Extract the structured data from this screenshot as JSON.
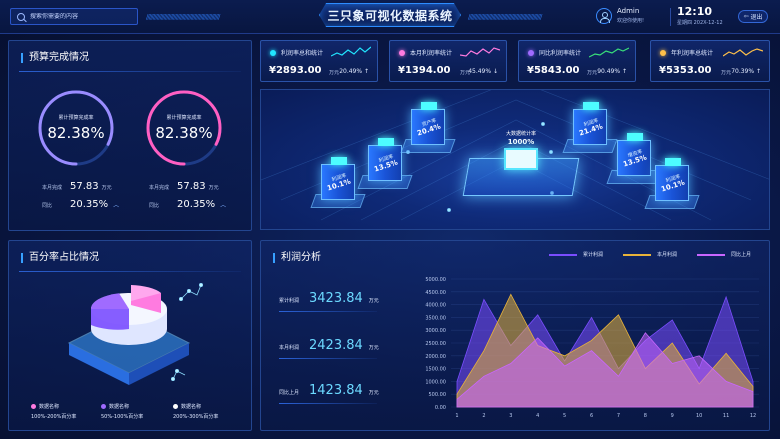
{
  "header": {
    "search_placeholder": "搜索你需要的内容",
    "title": "三只象可视化数据系统",
    "user_name": "Admin",
    "user_greeting": "欢迎你使用!",
    "time": "12:10",
    "date": "星期四 202X-12-12",
    "exit_label": "退出"
  },
  "budget": {
    "title": "预算完成情况",
    "gauges": [
      {
        "label": "累计预算完成率",
        "value": "82.38%",
        "fraction": 0.8238,
        "color": "#9a8cff"
      },
      {
        "label": "累计预算完成率",
        "value": "82.38%",
        "fraction": 0.8238,
        "color": "#ff5fc2"
      }
    ],
    "stats": [
      {
        "month_label": "本月完成",
        "month_value": "57.83",
        "unit": "万元",
        "yoy_label": "同比",
        "yoy_value": "20.35%",
        "yoy_icon": "arrow-up-icon"
      },
      {
        "month_label": "本月完成",
        "month_value": "57.83",
        "unit": "万元",
        "yoy_label": "同比",
        "yoy_value": "20.35%",
        "yoy_icon": "arrow-up-icon"
      }
    ]
  },
  "kpis": [
    {
      "name": "利润率总和统计",
      "value": "¥2893.00",
      "unit": "万元",
      "pct": "20.49% ↑",
      "color": "#21e6ff"
    },
    {
      "name": "本月利润率统计",
      "value": "¥1394.00",
      "unit": "万元",
      "pct": "45.49% ↓",
      "color": "#ff7be0"
    },
    {
      "name": "同比利润率统计",
      "value": "¥5843.00",
      "unit": "万元",
      "pct": "90.49% ↑",
      "color": "#a06bff"
    },
    {
      "name": "年利润率总统计",
      "value": "¥5353.00",
      "unit": "万元",
      "pct": "70.39% ↑",
      "color": "#ffc04a"
    }
  ],
  "center": {
    "hub": {
      "label": "大数据统计率",
      "value": "1000%"
    },
    "towers": [
      {
        "label": "利润率",
        "value": "10.1%"
      },
      {
        "label": "利润率",
        "value": "13.5%"
      },
      {
        "label": "资产率",
        "value": "20.4%"
      },
      {
        "label": "利润率",
        "value": "21.4%"
      },
      {
        "label": "增资率",
        "value": "13.5%"
      },
      {
        "label": "利润率",
        "value": "10.1%"
      }
    ]
  },
  "percent": {
    "title": "百分率占比情况",
    "legend": [
      {
        "name": "数据名称",
        "range": "100%-200%百分率",
        "color": "#ff7be0"
      },
      {
        "name": "数据名称",
        "range": "50%-100%百分率",
        "color": "#a06bff"
      },
      {
        "name": "数据名称",
        "range": "200%-300%百分率",
        "color": "#ffffff"
      }
    ]
  },
  "profit": {
    "title": "利润分析",
    "rows": [
      {
        "label": "累计利润",
        "value": "3423.84",
        "unit": "万元"
      },
      {
        "label": "本月利润",
        "value": "2423.84",
        "unit": "万元"
      },
      {
        "label": "同比上月",
        "value": "1423.84",
        "unit": "万元"
      }
    ]
  },
  "chart_data": {
    "type": "area",
    "x": [
      "1",
      "2",
      "3",
      "4",
      "5",
      "6",
      "7",
      "8",
      "9",
      "10",
      "11",
      "12"
    ],
    "yticks": [
      "0.00",
      "500.00",
      "1000.00",
      "1500.00",
      "2000.00",
      "2500.00",
      "3000.00",
      "3500.00",
      "4000.00",
      "4500.00",
      "5000.00"
    ],
    "ylim": [
      0,
      5000
    ],
    "grid": true,
    "legend_position": "top-right",
    "series": [
      {
        "name": "累计利润",
        "color": "#7a4dff",
        "values": [
          1000,
          4200,
          2400,
          3600,
          1800,
          3500,
          1500,
          2600,
          3400,
          1500,
          4300,
          1000
        ]
      },
      {
        "name": "本月利润",
        "color": "#e8b33a",
        "values": [
          500,
          2200,
          4400,
          2400,
          2000,
          2600,
          3600,
          1500,
          2500,
          900,
          2100,
          800
        ]
      },
      {
        "name": "同比上月",
        "color": "#c966ff",
        "values": [
          300,
          1200,
          1700,
          2700,
          1600,
          2200,
          1200,
          2900,
          1700,
          2000,
          1000,
          600
        ]
      }
    ]
  }
}
